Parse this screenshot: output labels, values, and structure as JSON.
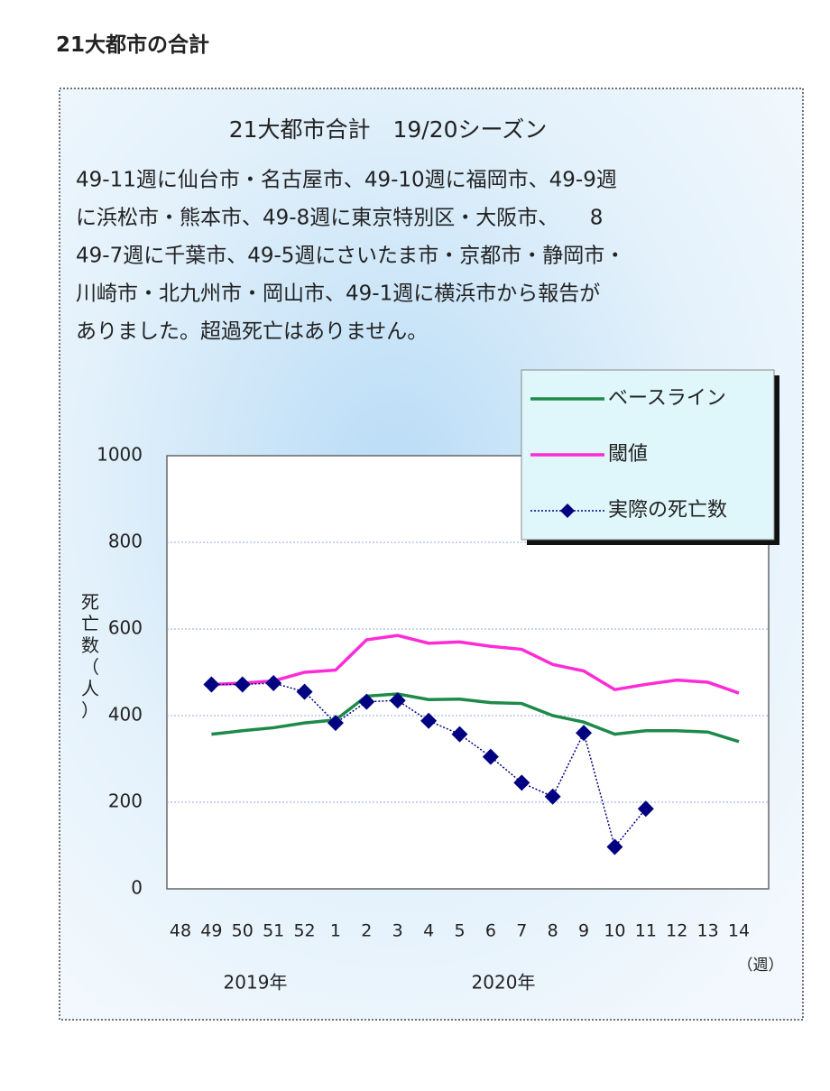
{
  "page_heading": "21大都市の合計",
  "chart_data": {
    "type": "line",
    "title": "21大都市合計　19/20シーズン",
    "annotation": [
      "49-11週に仙台市・名古屋市、49-10週に福岡市、49-9週",
      "に浜松市・熊本市、49-8週に東京特別区・大阪市、　　8",
      "49-7週に千葉市、49-5週にさいたま市・京都市・静岡市・",
      "川崎市・北九州市・岡山市、49-1週に横浜市から報告が",
      "ありました。超過死亡はありません。"
    ],
    "y_label": "死亡数（人）",
    "x_label": "（週）",
    "year_labels": [
      "2019年",
      "2020年"
    ],
    "categories": [
      "48",
      "49",
      "50",
      "51",
      "52",
      "1",
      "2",
      "3",
      "4",
      "5",
      "6",
      "7",
      "8",
      "9",
      "10",
      "11",
      "12",
      "13",
      "14"
    ],
    "series": [
      {
        "name": "ベースライン",
        "color": "#1e8a4a",
        "values": [
          null,
          357,
          365,
          372,
          383,
          390,
          445,
          450,
          437,
          438,
          430,
          428,
          400,
          385,
          357,
          365,
          365,
          362,
          340
        ]
      },
      {
        "name": "閾値",
        "color": "#ff2bd6",
        "values": [
          null,
          472,
          475,
          480,
          500,
          505,
          575,
          585,
          567,
          570,
          560,
          553,
          518,
          503,
          460,
          472,
          482,
          477,
          452
        ]
      },
      {
        "name": "実際の死亡数",
        "color": "#000080",
        "values": [
          null,
          472,
          472,
          475,
          455,
          383,
          432,
          435,
          388,
          357,
          305,
          245,
          213,
          360,
          97,
          185,
          null,
          null,
          null
        ]
      }
    ],
    "ylim": [
      0,
      1000
    ],
    "yticks": [
      0,
      200,
      400,
      600,
      800,
      1000
    ],
    "grid": true,
    "legend": "top-right"
  }
}
